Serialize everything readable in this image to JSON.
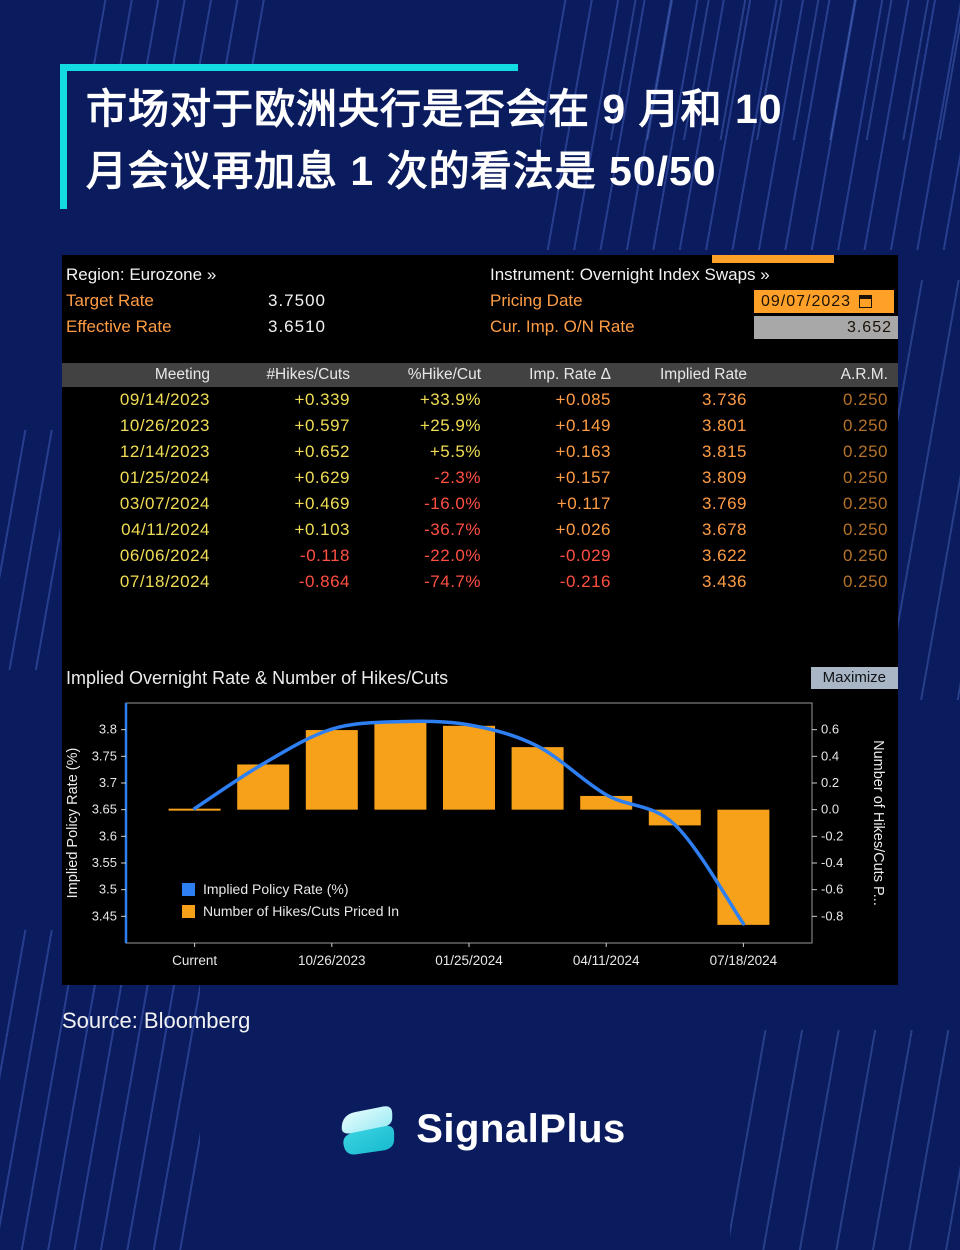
{
  "colors": {
    "background": "#0a1b5e",
    "accent": "#13dbe2",
    "panel_bg": "#000000",
    "amber": "#ff9d45",
    "yellow": "#f0dd55",
    "red": "#ff4f42",
    "white": "#f2f2f2",
    "dim_orange": "#b5722a",
    "bar": "#f7a11a",
    "line": "#2e7ff2",
    "field_orange": "#ffa028",
    "field_gray": "#a8a8a8",
    "maximize_bg": "#a9b6c6",
    "axis_frame": "#9a9a9a"
  },
  "title": {
    "line1": "市场对于欧洲央行是否会在 9 月和 10",
    "line2": "月会议再加息 1 次的看法是 50/50"
  },
  "terminal": {
    "region": "Region: Eurozone »",
    "instrument": "Instrument: Overnight Index Swaps »",
    "fields": {
      "target_rate": {
        "label": "Target Rate",
        "value": "3.7500"
      },
      "effective_rate": {
        "label": "Effective Rate",
        "value": "3.6510"
      },
      "pricing_date": {
        "label": "Pricing Date",
        "value": "09/07/2023"
      },
      "cur_imp": {
        "label": "Cur. Imp. O/N Rate",
        "value": "3.652"
      }
    },
    "table": {
      "headers": [
        "Meeting",
        "#Hikes/Cuts",
        "%Hike/Cut",
        "Imp. Rate Δ",
        "Implied Rate",
        "A.R.M."
      ],
      "rows": [
        [
          "09/14/2023",
          "+0.339",
          "+33.9%",
          "+0.085",
          "3.736",
          "0.250"
        ],
        [
          "10/26/2023",
          "+0.597",
          "+25.9%",
          "+0.149",
          "3.801",
          "0.250"
        ],
        [
          "12/14/2023",
          "+0.652",
          "+5.5%",
          "+0.163",
          "3.815",
          "0.250"
        ],
        [
          "01/25/2024",
          "+0.629",
          "-2.3%",
          "+0.157",
          "3.809",
          "0.250"
        ],
        [
          "03/07/2024",
          "+0.469",
          "-16.0%",
          "+0.117",
          "3.769",
          "0.250"
        ],
        [
          "04/11/2024",
          "+0.103",
          "-36.7%",
          "+0.026",
          "3.678",
          "0.250"
        ],
        [
          "06/06/2024",
          "-0.118",
          "-22.0%",
          "-0.029",
          "3.622",
          "0.250"
        ],
        [
          "07/18/2024",
          "-0.864",
          "-74.7%",
          "-0.216",
          "3.436",
          "0.250"
        ]
      ]
    },
    "chart_title": "Implied Overnight Rate & Number of Hikes/Cuts",
    "maximize_label": "Maximize"
  },
  "chart_data": {
    "type": "combo line+bar",
    "title": "Implied Overnight Rate & Number of Hikes/Cuts",
    "x_categories": [
      "Current",
      "09/14/2023",
      "10/26/2023",
      "12/14/2023",
      "01/25/2024",
      "03/07/2024",
      "04/11/2024",
      "06/06/2024",
      "07/18/2024"
    ],
    "x_tick_labels": [
      {
        "index": 0,
        "label": "Current"
      },
      {
        "index": 2,
        "label": "10/26/2023"
      },
      {
        "index": 4,
        "label": "01/25/2024"
      },
      {
        "index": 6,
        "label": "04/11/2024"
      },
      {
        "index": 8,
        "label": "07/18/2024"
      }
    ],
    "series": [
      {
        "name": "Implied Policy Rate (%)",
        "type": "line",
        "axis": "left",
        "values": [
          3.652,
          3.736,
          3.801,
          3.815,
          3.809,
          3.769,
          3.678,
          3.622,
          3.436
        ]
      },
      {
        "name": "Number of Hikes/Cuts Priced In",
        "type": "bar",
        "axis": "right",
        "values": [
          0.0,
          0.339,
          0.597,
          0.652,
          0.629,
          0.469,
          0.103,
          -0.118,
          -0.864
        ]
      }
    ],
    "left_axis": {
      "label": "Implied Policy Rate (%)",
      "ticks": [
        3.45,
        3.5,
        3.55,
        3.6,
        3.65,
        3.7,
        3.75,
        3.8
      ],
      "range": [
        3.4,
        3.85
      ]
    },
    "right_axis": {
      "label": "Number of Hikes/Cuts P...",
      "ticks": [
        -0.8,
        -0.6,
        -0.4,
        -0.2,
        0.0,
        0.2,
        0.4,
        0.6
      ],
      "range": [
        -1.0,
        0.8
      ]
    },
    "legend_position": "bottom-left-inside",
    "grid": false
  },
  "source": "Source: Bloomberg",
  "brand": {
    "name": "SignalPlus"
  }
}
